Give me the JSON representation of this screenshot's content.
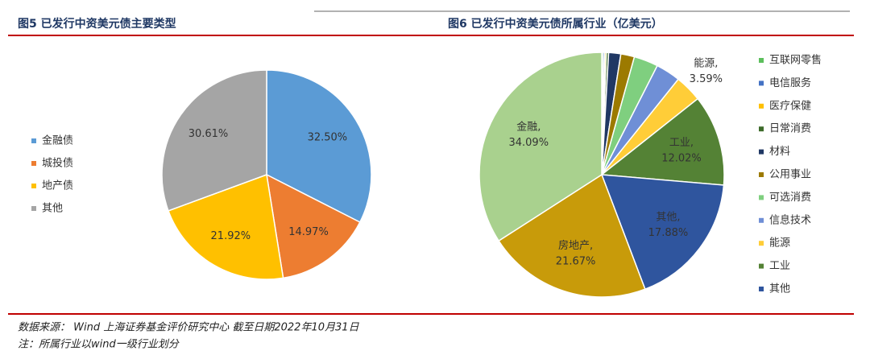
{
  "chart_data": [
    {
      "type": "pie",
      "title": "图5 已发行中资美元债主要类型",
      "categories": [
        "金融债",
        "城投债",
        "地产债",
        "其他"
      ],
      "values": [
        32.5,
        14.97,
        21.92,
        30.61
      ],
      "value_labels": [
        "32.50%",
        "14.97%",
        "21.92%",
        "30.61%"
      ],
      "colors": [
        "#5b9bd5",
        "#ed7d31",
        "#ffc000",
        "#a5a5a5"
      ],
      "legend": "left"
    },
    {
      "type": "pie",
      "title": "图6 已发行中资美元债所属行业（亿美元）",
      "categories": [
        "互联网零售",
        "电信服务",
        "医疗保健",
        "日常消费",
        "材料",
        "公用事业",
        "可选消费",
        "信息技术",
        "能源",
        "工业",
        "其他",
        "房地产",
        "金融"
      ],
      "values": [
        0.2,
        0.2,
        0.2,
        0.3,
        1.6,
        1.8,
        3.2,
        3.25,
        3.59,
        12.02,
        17.88,
        21.67,
        34.09
      ],
      "value_labels": [
        null,
        null,
        null,
        null,
        null,
        null,
        null,
        null,
        "3.59%",
        "12.02%",
        "17.88%",
        "21.67%",
        "34.09%"
      ],
      "label_separator": ",",
      "colors": [
        "#5cbf5c",
        "#4472c4",
        "#ffc000",
        "#3d6b2a",
        "#203864",
        "#9c7a00",
        "#7fcf7f",
        "#6f8fd6",
        "#ffcd38",
        "#548235",
        "#2f559e",
        "#c89b0a",
        "#a9d18e"
      ],
      "legend": "right"
    }
  ],
  "notes": [
    "数据来源： Wind 上海证券基金评价研究中心 截至日期2022年10月31日",
    "注：所属行业以wind一级行业划分"
  ]
}
